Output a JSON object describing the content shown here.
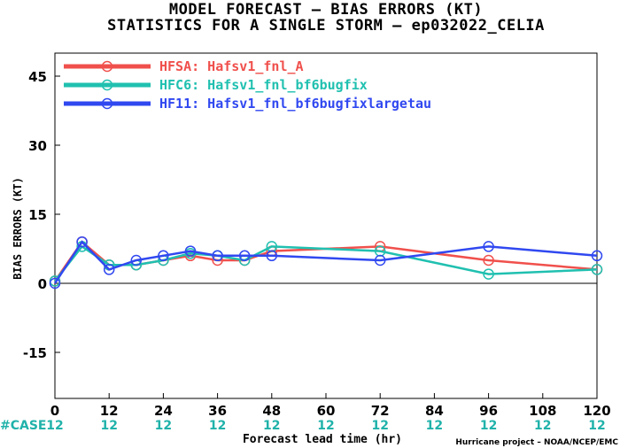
{
  "header": {
    "title1": "MODEL FORECAST – BIAS ERRORS (KT)",
    "title2": "STATISTICS FOR A SINGLE STORM – ep032022_CELIA"
  },
  "footer": {
    "case_label": "#CASE",
    "credit": "Hurricane project – NOAA/NCEP/EMC"
  },
  "chart_data": {
    "type": "line",
    "title": "MODEL FORECAST – BIAS ERRORS (KT)",
    "subtitle": "STATISTICS FOR A SINGLE STORM – ep032022_CELIA",
    "xlabel": "Forecast lead time (hr)",
    "ylabel": "BIAS ERRORS (KT)",
    "xlim": [
      0,
      120
    ],
    "ylim": [
      -25,
      50
    ],
    "xticks": [
      0,
      12,
      24,
      36,
      48,
      60,
      72,
      84,
      96,
      108,
      120
    ],
    "yticks": [
      -15,
      0,
      15,
      30,
      45
    ],
    "legend_position": "top-left",
    "case_counts": [
      12,
      12,
      12,
      12,
      12,
      12,
      12,
      12,
      12,
      12,
      12
    ],
    "series": [
      {
        "name": "HFSA: Hafsv1_fnl_A",
        "color": "#f0504c",
        "x": [
          0,
          6,
          12,
          18,
          24,
          30,
          36,
          42,
          48,
          72,
          96,
          120
        ],
        "y": [
          0.5,
          9,
          4,
          4,
          5,
          6,
          5,
          5,
          7,
          8,
          5,
          3
        ]
      },
      {
        "name": "HFC6: Hafsv1_fnl_bf6bugfix",
        "color": "#20c0b0",
        "x": [
          0,
          6,
          12,
          18,
          24,
          30,
          36,
          42,
          48,
          72,
          96,
          120
        ],
        "y": [
          0.5,
          8,
          4,
          4,
          5,
          6.5,
          6,
          5,
          8,
          7,
          2,
          3
        ]
      },
      {
        "name": "HF11: Hafsv1_fnl_bf6bugfixlargetau",
        "color": "#3048f0",
        "x": [
          0,
          6,
          12,
          18,
          24,
          30,
          36,
          42,
          48,
          72,
          96,
          120
        ],
        "y": [
          0,
          9,
          3,
          5,
          6,
          7,
          6,
          6,
          6,
          5,
          8,
          6
        ]
      }
    ]
  }
}
